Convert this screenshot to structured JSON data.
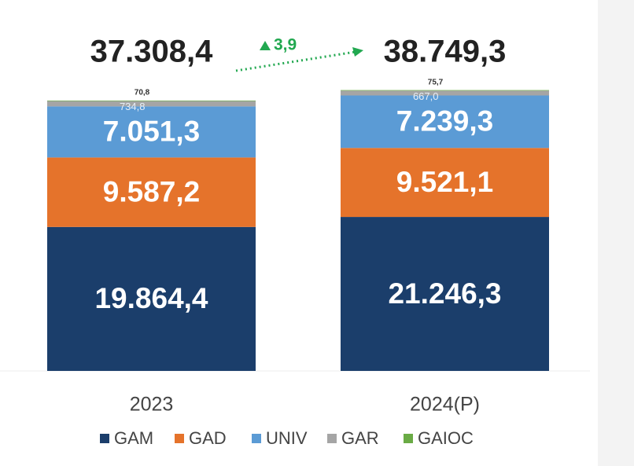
{
  "chart_data": {
    "type": "stacked_bar",
    "categories": [
      "2023",
      "2024(P)"
    ],
    "series": [
      {
        "name": "GAM",
        "color": "#1b3e6b",
        "values": [
          19864.4,
          21246.3
        ],
        "value_labels": [
          "19.864,4",
          "21.246,3"
        ]
      },
      {
        "name": "GAD",
        "color": "#e5732b",
        "values": [
          9587.2,
          9521.1
        ],
        "value_labels": [
          "9.587,2",
          "9.521,1"
        ]
      },
      {
        "name": "UNIV",
        "color": "#5b9bd5",
        "values": [
          7051.3,
          7239.3
        ],
        "value_labels": [
          "7.051,3",
          "7.239,3"
        ]
      },
      {
        "name": "GAR",
        "color": "#a5a5a5",
        "values": [
          734.8,
          667.0
        ],
        "value_labels": [
          "734,8",
          "667,0"
        ]
      },
      {
        "name": "GAIOC",
        "color": "#6aab45",
        "values": [
          70.8,
          75.7
        ],
        "value_labels": [
          "70,8",
          "75,7"
        ]
      }
    ],
    "totals": [
      37308.4,
      38749.3
    ],
    "total_labels": [
      "37.308,4",
      "38.749,3"
    ],
    "growth": {
      "value": 3.9,
      "label": "3,9"
    },
    "ylim": [
      0,
      45000
    ],
    "legend": "bottom"
  }
}
